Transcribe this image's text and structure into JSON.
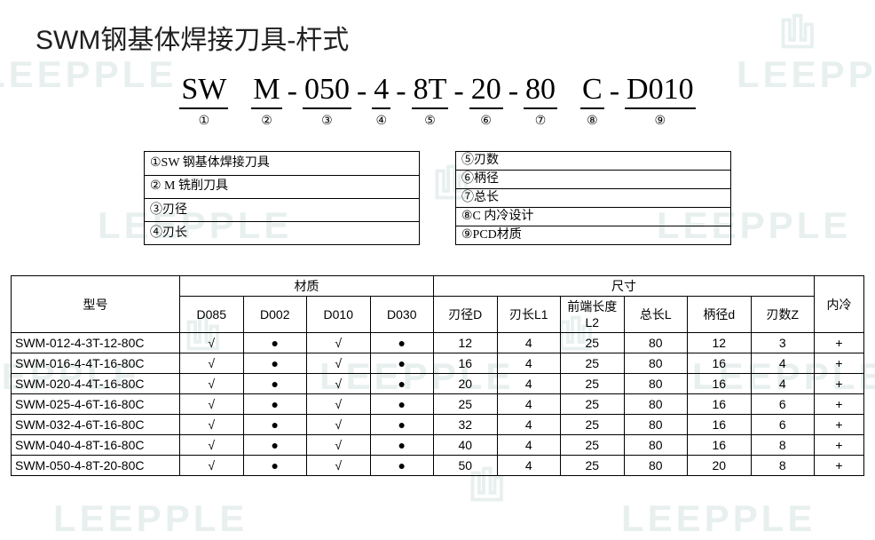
{
  "title": "SWM钢基体焊接刀具-杆式",
  "code": {
    "segments": [
      {
        "text": "SW",
        "num": "①"
      },
      {
        "text": "M",
        "num": "②"
      },
      {
        "text": "050",
        "num": "③"
      },
      {
        "text": "4",
        "num": "④"
      },
      {
        "text": "8T",
        "num": "⑤"
      },
      {
        "text": "20",
        "num": "⑥"
      },
      {
        "text": "80",
        "num": "⑦"
      },
      {
        "text": "C",
        "num": "⑧"
      },
      {
        "text": "D010",
        "num": "⑨"
      }
    ],
    "separators": [
      "",
      "-",
      "-",
      "-",
      "-",
      "-",
      "",
      "-"
    ]
  },
  "legend_left": [
    "①SW 钢基体焊接刀具",
    "② M 铣削刀具",
    "③刃径",
    "④刃长"
  ],
  "legend_right": [
    "⑤刃数",
    "⑥柄径",
    "⑦总长",
    "⑧C 内冷设计",
    "⑨PCD材质"
  ],
  "spec": {
    "group_material": "材质",
    "group_dimension": "尺寸",
    "col_model": "型号",
    "col_cooling": "内冷",
    "material_cols": [
      "D085",
      "D002",
      "D010",
      "D030"
    ],
    "dimension_cols": [
      "刃径D",
      "刃长L1",
      "前端长度L2",
      "总长L",
      "柄径d",
      "刃数Z"
    ],
    "rows": [
      {
        "model": "SWM-012-4-3T-12-80C",
        "mat": [
          "√",
          "●",
          "√",
          "●"
        ],
        "dim": [
          "12",
          "4",
          "25",
          "80",
          "12",
          "3"
        ],
        "cool": "+"
      },
      {
        "model": "SWM-016-4-4T-16-80C",
        "mat": [
          "√",
          "●",
          "√",
          "●"
        ],
        "dim": [
          "16",
          "4",
          "25",
          "80",
          "16",
          "4"
        ],
        "cool": "+"
      },
      {
        "model": "SWM-020-4-4T-16-80C",
        "mat": [
          "√",
          "●",
          "√",
          "●"
        ],
        "dim": [
          "20",
          "4",
          "25",
          "80",
          "16",
          "4"
        ],
        "cool": "+"
      },
      {
        "model": "SWM-025-4-6T-16-80C",
        "mat": [
          "√",
          "●",
          "√",
          "●"
        ],
        "dim": [
          "25",
          "4",
          "25",
          "80",
          "16",
          "6"
        ],
        "cool": "+"
      },
      {
        "model": "SWM-032-4-6T-16-80C",
        "mat": [
          "√",
          "●",
          "√",
          "●"
        ],
        "dim": [
          "32",
          "4",
          "25",
          "80",
          "16",
          "6"
        ],
        "cool": "+"
      },
      {
        "model": "SWM-040-4-8T-16-80C",
        "mat": [
          "√",
          "●",
          "√",
          "●"
        ],
        "dim": [
          "40",
          "4",
          "25",
          "80",
          "16",
          "8"
        ],
        "cool": "+"
      },
      {
        "model": "SWM-050-4-8T-20-80C",
        "mat": [
          "√",
          "●",
          "√",
          "●"
        ],
        "dim": [
          "50",
          "4",
          "25",
          "80",
          "20",
          "8"
        ],
        "cool": "+"
      }
    ]
  },
  "watermark_text": "LEEPPLE",
  "colors": {
    "watermark": "#e8f0ef",
    "border": "#000000",
    "text": "#000000",
    "background": "#ffffff"
  }
}
